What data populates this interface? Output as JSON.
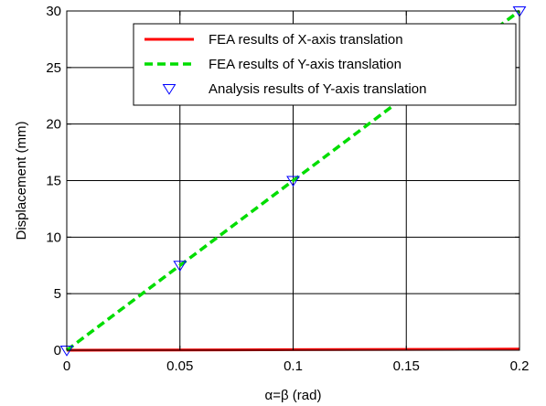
{
  "chart_data": {
    "type": "line",
    "xlabel": "α=β (rad)",
    "ylabel": "Displacement (mm)",
    "xlim": [
      0,
      0.2
    ],
    "ylim": [
      0,
      30
    ],
    "xticks": [
      0,
      0.05,
      0.1,
      0.15,
      0.2
    ],
    "yticks": [
      0,
      5,
      10,
      15,
      20,
      25,
      30
    ],
    "xtick_labels": [
      "0",
      "0.05",
      "0.1",
      "0.15",
      "0.2"
    ],
    "ytick_labels": [
      "0",
      "5",
      "10",
      "15",
      "20",
      "25",
      "30"
    ],
    "grid": true,
    "legend_position": "top-right",
    "series": [
      {
        "name": "FEA results of X-axis translation",
        "style": "solid-line",
        "color": "#ff0000",
        "x": [
          0,
          0.05,
          0.1,
          0.15,
          0.2
        ],
        "y": [
          0,
          0.02,
          0.05,
          0.07,
          0.1
        ]
      },
      {
        "name": "FEA results of Y-axis translation",
        "style": "dashed-line",
        "color": "#00dd00",
        "x": [
          0,
          0.05,
          0.1,
          0.15,
          0.2
        ],
        "y": [
          0,
          7.5,
          15,
          22.5,
          30
        ]
      },
      {
        "name": "Analysis results of Y-axis translation",
        "style": "triangle-down-markers",
        "color": "#0000ff",
        "x": [
          0,
          0.05,
          0.1,
          0.2
        ],
        "y": [
          0,
          7.5,
          15,
          30
        ]
      }
    ]
  }
}
